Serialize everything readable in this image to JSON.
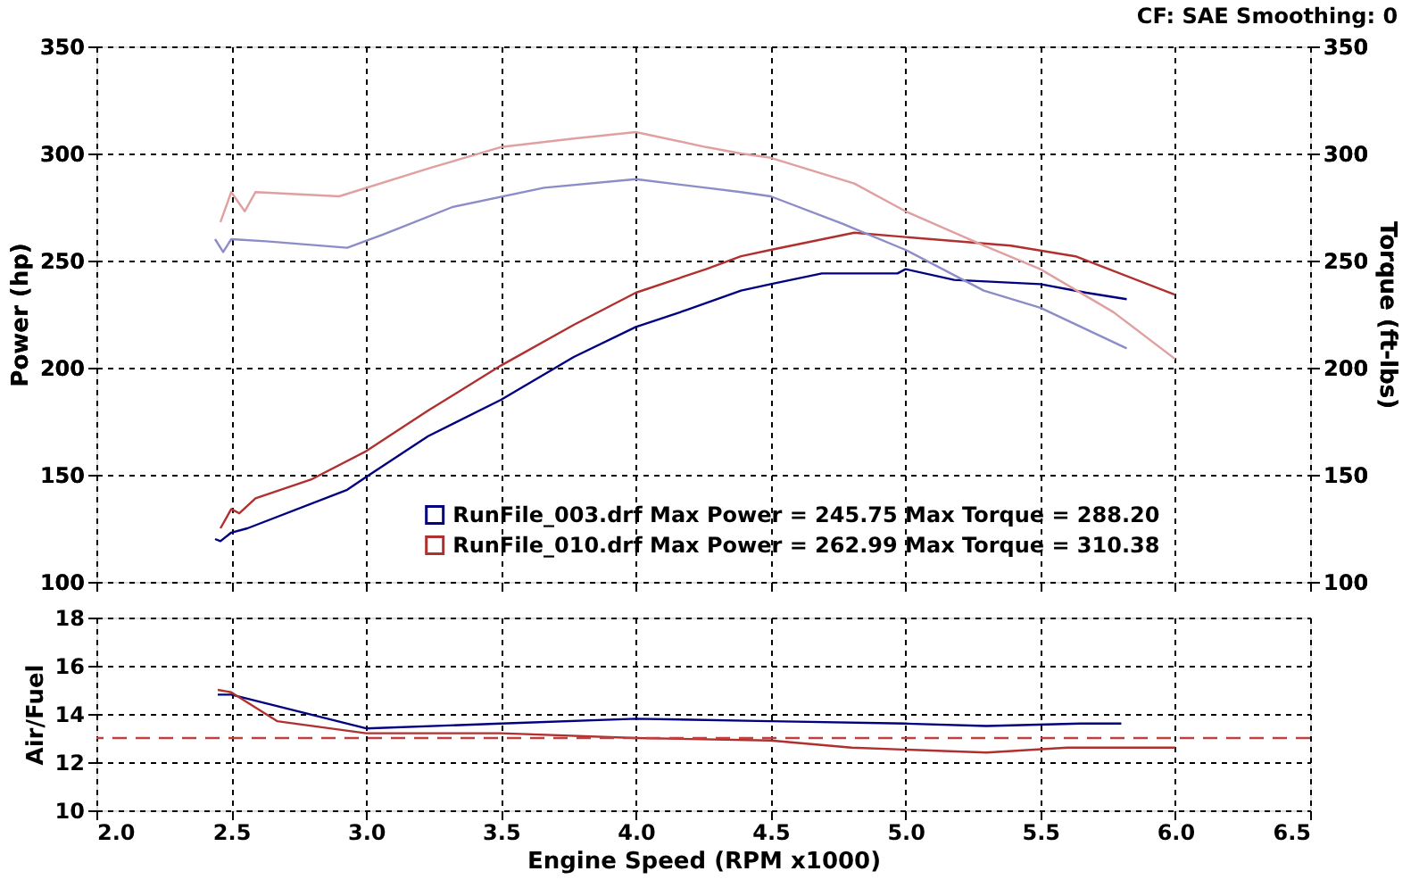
{
  "chart_data": [
    {
      "type": "line",
      "annotations": [
        "CF: SAE  Smoothing: 0"
      ],
      "ylabel": "Power (hp)",
      "y2label": "Torque (ft-lbs)",
      "xlim": [
        2.0,
        6.5
      ],
      "xticks": [
        {
          "value": 2,
          "label": null
        },
        {
          "value": 2.5,
          "label": null
        },
        {
          "value": 3,
          "label": null
        },
        {
          "value": 3.5,
          "label": null
        },
        {
          "value": 4,
          "label": null
        },
        {
          "value": 4.5,
          "label": null
        },
        {
          "value": 5,
          "label": null
        },
        {
          "value": 5.5,
          "label": null
        },
        {
          "value": 6,
          "label": null
        },
        {
          "value": 6.5,
          "label": null
        }
      ],
      "ylim": [
        100,
        350
      ],
      "yticks": [
        100,
        150,
        200,
        250,
        300,
        350
      ],
      "y2lim": [
        100,
        350
      ],
      "y2ticks": [
        100,
        150,
        200,
        250,
        300,
        350
      ],
      "tick_labels": "y",
      "grid": true,
      "legend": "bottom",
      "marker": "none",
      "line_style": "solid",
      "series": [
        {
          "name": "RunFile_003.drf Max Power = 245.75    Max Torque = 288.20",
          "color": "#000080",
          "x": [
            2.44,
            2.46,
            2.5,
            2.56,
            2.93,
            3.0,
            3.23,
            3.5,
            3.77,
            4.0,
            4.19,
            4.39,
            4.5,
            4.69,
            4.97,
            5.0,
            5.18,
            5.5,
            5.67,
            5.82
          ],
          "values": [
            120,
            119,
            123,
            125,
            143,
            149,
            168,
            185,
            205,
            219,
            227,
            236,
            239,
            244,
            244,
            246,
            241,
            239,
            235,
            232
          ]
        },
        {
          "name": "RunFile_010.drf Max Power = 262.99    Max Torque = 310.38",
          "color": "#b03030",
          "x": [
            2.46,
            2.5,
            2.53,
            2.59,
            2.8,
            3.0,
            3.23,
            3.5,
            3.77,
            4.0,
            4.26,
            4.39,
            4.5,
            4.81,
            5.0,
            5.39,
            5.63,
            6.0
          ],
          "values": [
            125,
            134,
            132,
            139,
            148,
            161,
            180,
            201,
            220,
            235,
            246,
            252,
            255,
            263,
            261,
            257,
            252,
            234
          ]
        },
        {
          "axis": "y2",
          "color": "#8c8cc8",
          "x": [
            2.44,
            2.47,
            2.5,
            2.63,
            2.93,
            3.06,
            3.32,
            3.66,
            4.0,
            4.26,
            4.39,
            4.5,
            4.77,
            5.0,
            5.29,
            5.5,
            5.82
          ],
          "values": [
            260,
            254,
            260,
            259,
            256,
            262,
            275,
            284,
            288,
            284,
            282,
            280,
            267,
            255,
            236,
            228,
            209
          ]
        },
        {
          "axis": "y2",
          "color": "#e0a0a0",
          "x": [
            2.46,
            2.5,
            2.55,
            2.59,
            2.9,
            3.23,
            3.5,
            3.77,
            4.0,
            4.26,
            4.39,
            4.5,
            4.81,
            5.0,
            5.29,
            5.5,
            5.77,
            6.0
          ],
          "values": [
            268,
            282,
            273,
            282,
            280,
            293,
            303,
            307,
            310,
            303,
            300,
            298,
            286,
            273,
            257,
            246,
            226,
            204
          ]
        }
      ]
    },
    {
      "type": "line",
      "xlabel": "Engine Speed (RPM x1000)",
      "ylabel": "Air/Fuel",
      "xlim": [
        2.0,
        6.5
      ],
      "xticks": [
        {
          "value": 2,
          "label": "2.0"
        },
        2.5,
        {
          "value": 3,
          "label": "3.0"
        },
        3.5,
        {
          "value": 4,
          "label": "4.0"
        },
        4.5,
        {
          "value": 5,
          "label": "5.0"
        },
        5.5,
        {
          "value": 6,
          "label": "6.0"
        },
        6.5
      ],
      "ylim": [
        10,
        18
      ],
      "yticks": [
        10,
        12,
        14,
        16,
        18
      ],
      "grid": true,
      "marker": "none",
      "line_style": "solid",
      "ref_lines": [
        {
          "axis": "y",
          "value": 13,
          "color": "#c04040",
          "line_style": "dashed"
        }
      ],
      "series": [
        {
          "color": "#000080",
          "x": [
            2.45,
            2.5,
            3.0,
            3.5,
            4.0,
            4.5,
            5.0,
            5.3,
            5.65,
            5.8
          ],
          "values": [
            14.8,
            14.8,
            13.4,
            13.6,
            13.8,
            13.7,
            13.6,
            13.5,
            13.6,
            13.6
          ]
        },
        {
          "color": "#b03030",
          "x": [
            2.45,
            2.5,
            2.67,
            3.0,
            3.5,
            4.0,
            4.5,
            4.8,
            5.3,
            5.6,
            5.9,
            6.0
          ],
          "values": [
            15.0,
            14.9,
            13.7,
            13.2,
            13.2,
            13.0,
            12.9,
            12.6,
            12.4,
            12.6,
            12.6,
            12.6
          ]
        }
      ]
    }
  ]
}
